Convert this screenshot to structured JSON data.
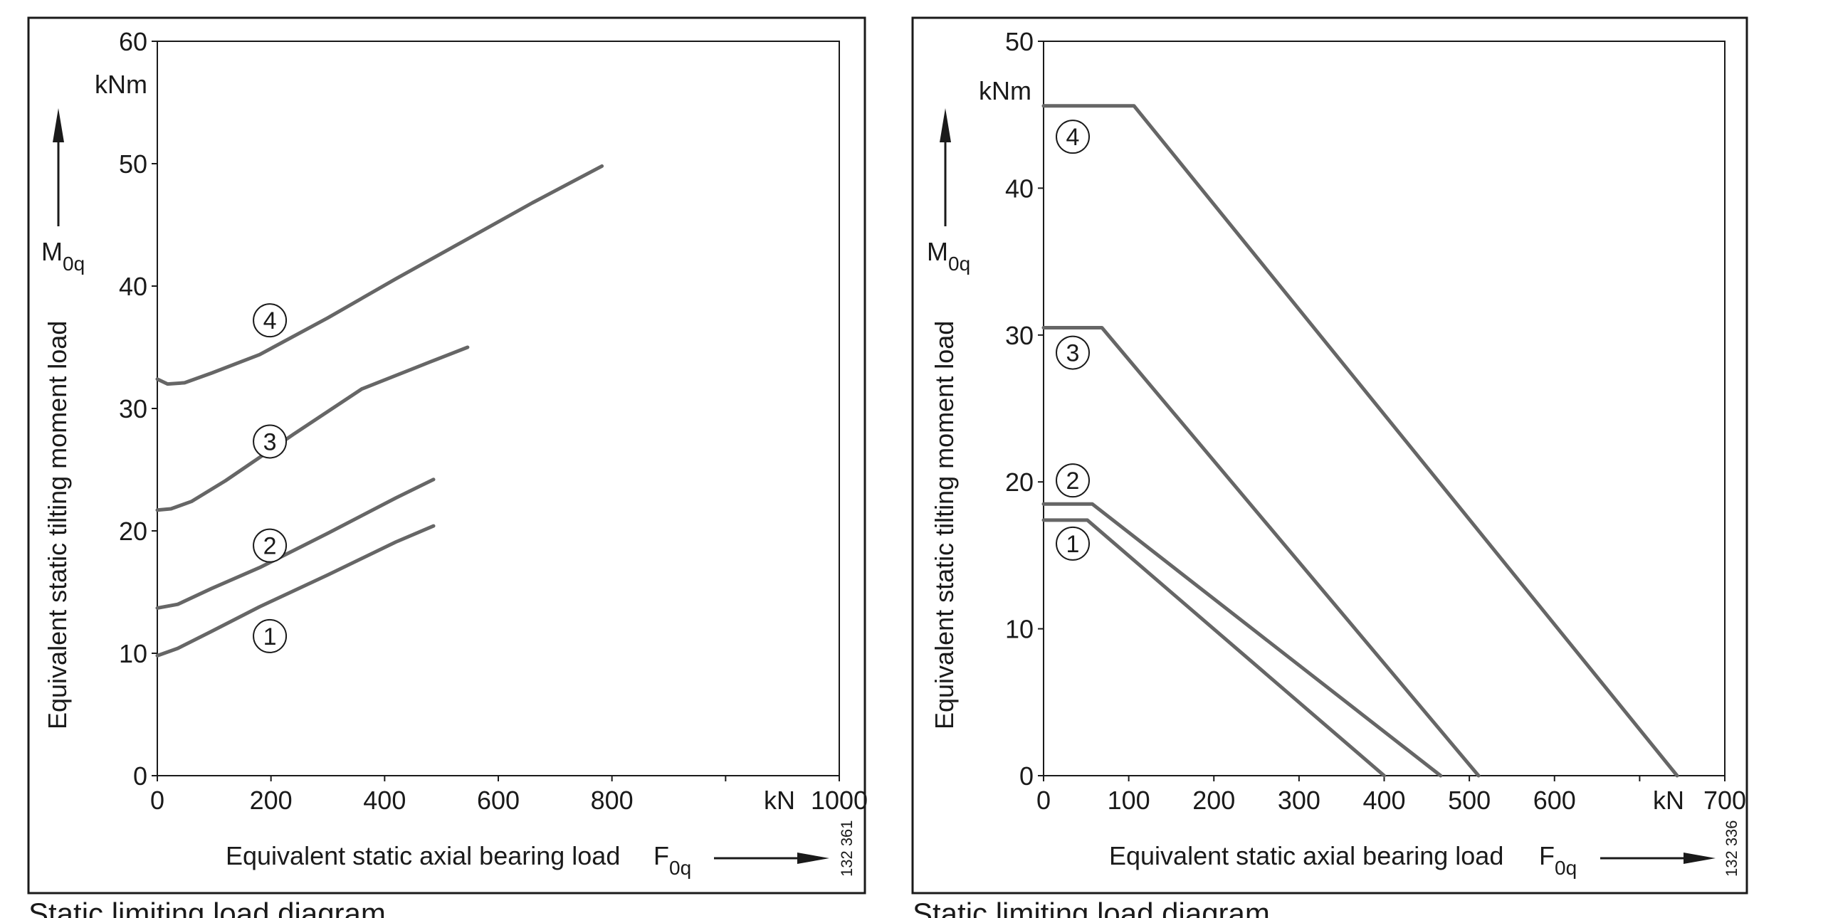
{
  "chart_data": [
    {
      "type": "line",
      "ylabel": "Equivalent static tilting moment load",
      "ysymbol_main": "M",
      "ysymbol_sub": "0q",
      "yunit": "kNm",
      "xlabel": "Equivalent static axial bearing load",
      "xsymbol_main": "F",
      "xsymbol_sub": "0q",
      "xunit": "kN",
      "xlim": [
        0,
        1000
      ],
      "ylim": [
        0,
        60
      ],
      "x_ticks": [
        "0",
        "200",
        "400",
        "600",
        "800",
        "",
        "1000"
      ],
      "y_ticks": [
        "0",
        "10",
        "20",
        "30",
        "40",
        "50",
        "60"
      ],
      "ref_number": "132 361",
      "caption": "Static limiting load diagram",
      "series": [
        {
          "name": "1",
          "x": [
            0,
            30,
            80,
            150,
            250,
            350,
            405
          ],
          "y": [
            9.8,
            10.4,
            11.8,
            13.8,
            16.4,
            19.1,
            20.4
          ]
        },
        {
          "name": "2",
          "x": [
            0,
            30,
            80,
            150,
            250,
            350,
            405
          ],
          "y": [
            13.7,
            14.0,
            15.3,
            17.0,
            19.8,
            22.7,
            24.2
          ]
        },
        {
          "name": "3",
          "x": [
            0,
            20,
            50,
            100,
            200,
            300,
            400,
            455
          ],
          "y": [
            21.7,
            21.8,
            22.4,
            24.1,
            27.9,
            31.6,
            33.8,
            35.0
          ]
        },
        {
          "name": "4",
          "x": [
            0,
            15,
            40,
            80,
            150,
            250,
            350,
            450,
            550,
            652
          ],
          "y": [
            32.4,
            32.0,
            32.1,
            32.9,
            34.4,
            37.4,
            40.6,
            43.7,
            46.8,
            49.8
          ]
        }
      ],
      "curve_labels": [
        {
          "text": "4",
          "x": 165,
          "y": 37.2
        },
        {
          "text": "3",
          "x": 165,
          "y": 27.3
        },
        {
          "text": "2",
          "x": 165,
          "y": 18.8
        },
        {
          "text": "1",
          "x": 165,
          "y": 11.4
        }
      ]
    },
    {
      "type": "line",
      "ylabel": "Equivalent static tilting moment load",
      "ysymbol_main": "M",
      "ysymbol_sub": "0q",
      "yunit": "kNm",
      "xlabel": "Equivalent static axial bearing load",
      "xsymbol_main": "F",
      "xsymbol_sub": "0q",
      "xunit": "kN",
      "xlim": [
        0,
        700
      ],
      "ylim": [
        0,
        50
      ],
      "x_ticks": [
        "0",
        "100",
        "200",
        "300",
        "400",
        "500",
        "600",
        "",
        "700"
      ],
      "y_ticks": [
        "0",
        "10",
        "20",
        "30",
        "40",
        "50"
      ],
      "ref_number": "132 336",
      "caption": "Static limiting load diagram",
      "series": [
        {
          "name": "1",
          "x": [
            0,
            45,
            350
          ],
          "y": [
            17.4,
            17.4,
            0
          ]
        },
        {
          "name": "2",
          "x": [
            0,
            50,
            408
          ],
          "y": [
            18.5,
            18.5,
            0
          ]
        },
        {
          "name": "3",
          "x": [
            0,
            60,
            447
          ],
          "y": [
            30.5,
            30.5,
            0
          ]
        },
        {
          "name": "4",
          "x": [
            0,
            93,
            651
          ],
          "y": [
            45.6,
            45.6,
            0
          ]
        }
      ],
      "curve_labels": [
        {
          "text": "4",
          "x": 30,
          "y": 43.5
        },
        {
          "text": "3",
          "x": 30,
          "y": 28.8
        },
        {
          "text": "2",
          "x": 30,
          "y": 20.1
        },
        {
          "text": "1",
          "x": 30,
          "y": 15.8
        }
      ]
    }
  ]
}
